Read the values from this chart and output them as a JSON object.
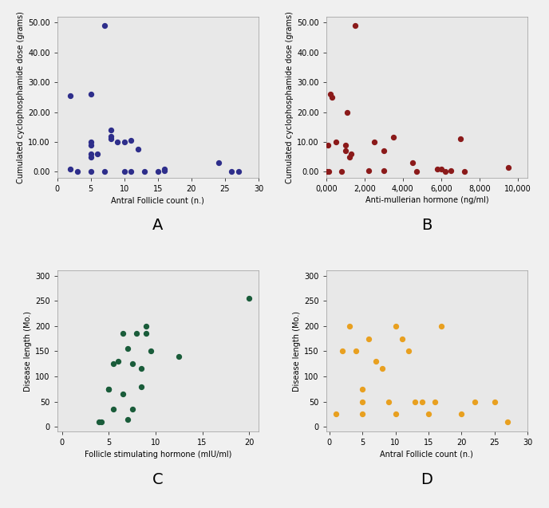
{
  "A": {
    "x": [
      2,
      2,
      3,
      5,
      5,
      5,
      5,
      5,
      5,
      6,
      7,
      7,
      8,
      8,
      8,
      9,
      10,
      10,
      11,
      11,
      12,
      13,
      15,
      16,
      16,
      24,
      26,
      27
    ],
    "y": [
      25.5,
      1,
      0,
      0,
      6,
      10,
      9,
      5,
      26,
      6,
      49,
      0,
      14,
      11,
      12,
      10,
      0,
      10,
      0,
      10.5,
      7.5,
      0,
      0,
      0.5,
      1,
      3,
      0,
      0
    ],
    "color": "#2E2E8B",
    "xlabel": "Antral Follicle count (n.)",
    "ylabel": "Cumulated cyclophosphamide dose (grams)",
    "xlim": [
      0,
      30
    ],
    "ylim": [
      -2,
      52
    ],
    "xticks": [
      0,
      5,
      10,
      15,
      20,
      25,
      30
    ],
    "yticks": [
      0,
      10,
      20,
      30,
      40,
      50
    ],
    "label": "A"
  },
  "B": {
    "x": [
      0.05,
      0.1,
      0.15,
      0.2,
      0.3,
      0.5,
      0.8,
      1.0,
      1.0,
      1.1,
      1.2,
      1.3,
      1.5,
      2.2,
      2.5,
      3.0,
      3.0,
      3.5,
      4.5,
      4.7,
      5.8,
      6.0,
      6.2,
      6.5,
      7.0,
      7.2,
      9.5
    ],
    "y": [
      0,
      9,
      0,
      26,
      25,
      10,
      0,
      9,
      7,
      20,
      5,
      6,
      49,
      0.5,
      10,
      0.5,
      7,
      11.5,
      3,
      0,
      1,
      1,
      0,
      0.5,
      11,
      0,
      1.5
    ],
    "color": "#8B1A1A",
    "xlabel": "Anti-mullerian hormone (ng/ml)",
    "ylabel": "Cumulated cyclophosphamide dose (grams)",
    "xlim": [
      -0.3,
      10500
    ],
    "ylim": [
      -2,
      52
    ],
    "xticks": [
      0,
      2000,
      4000,
      6000,
      8000,
      10000
    ],
    "xticklabels": [
      "0,000",
      "2,000",
      "4,000",
      "6,000",
      "8,000",
      "10,000"
    ],
    "yticks": [
      0,
      10,
      20,
      30,
      40,
      50
    ],
    "label": "B",
    "x_scale": 1000
  },
  "C": {
    "x": [
      4.0,
      4.2,
      5.0,
      5.0,
      5.5,
      5.5,
      6.0,
      6.5,
      6.5,
      7.0,
      7.0,
      7.5,
      7.5,
      8.0,
      8.5,
      8.5,
      9.0,
      9.0,
      9.5,
      12.5,
      20.0
    ],
    "y": [
      10,
      10,
      75,
      75,
      125,
      35,
      130,
      185,
      65,
      155,
      15,
      35,
      125,
      185,
      80,
      115,
      185,
      200,
      150,
      140,
      255
    ],
    "color": "#1A5C3A",
    "xlabel": "Follicle stimulating hormone (mIU/ml)",
    "ylabel": "Disease length (Mo.)",
    "xlim": [
      -0.5,
      21
    ],
    "ylim": [
      -10,
      310
    ],
    "xticks": [
      0,
      5,
      10,
      15,
      20
    ],
    "yticks": [
      0,
      50,
      100,
      150,
      200,
      250,
      300
    ],
    "label": "C"
  },
  "D": {
    "x": [
      1,
      2,
      3,
      4,
      5,
      5,
      5,
      6,
      7,
      8,
      9,
      10,
      10,
      11,
      12,
      13,
      14,
      15,
      16,
      17,
      20,
      22,
      25,
      27
    ],
    "y": [
      25,
      150,
      200,
      150,
      75,
      50,
      25,
      175,
      130,
      115,
      50,
      200,
      25,
      175,
      150,
      50,
      50,
      25,
      50,
      200,
      25,
      50,
      50,
      10
    ],
    "color": "#E8A020",
    "xlabel": "Antral Follicle count (n.)",
    "ylabel": "Disease length (Mo.)",
    "xlim": [
      -0.5,
      30
    ],
    "ylim": [
      -10,
      310
    ],
    "xticks": [
      0,
      5,
      10,
      15,
      20,
      25,
      30
    ],
    "yticks": [
      0,
      50,
      100,
      150,
      200,
      250,
      300
    ],
    "label": "D"
  },
  "bg_color": "#E8E8E8",
  "fig_bg": "#F0F0F0"
}
